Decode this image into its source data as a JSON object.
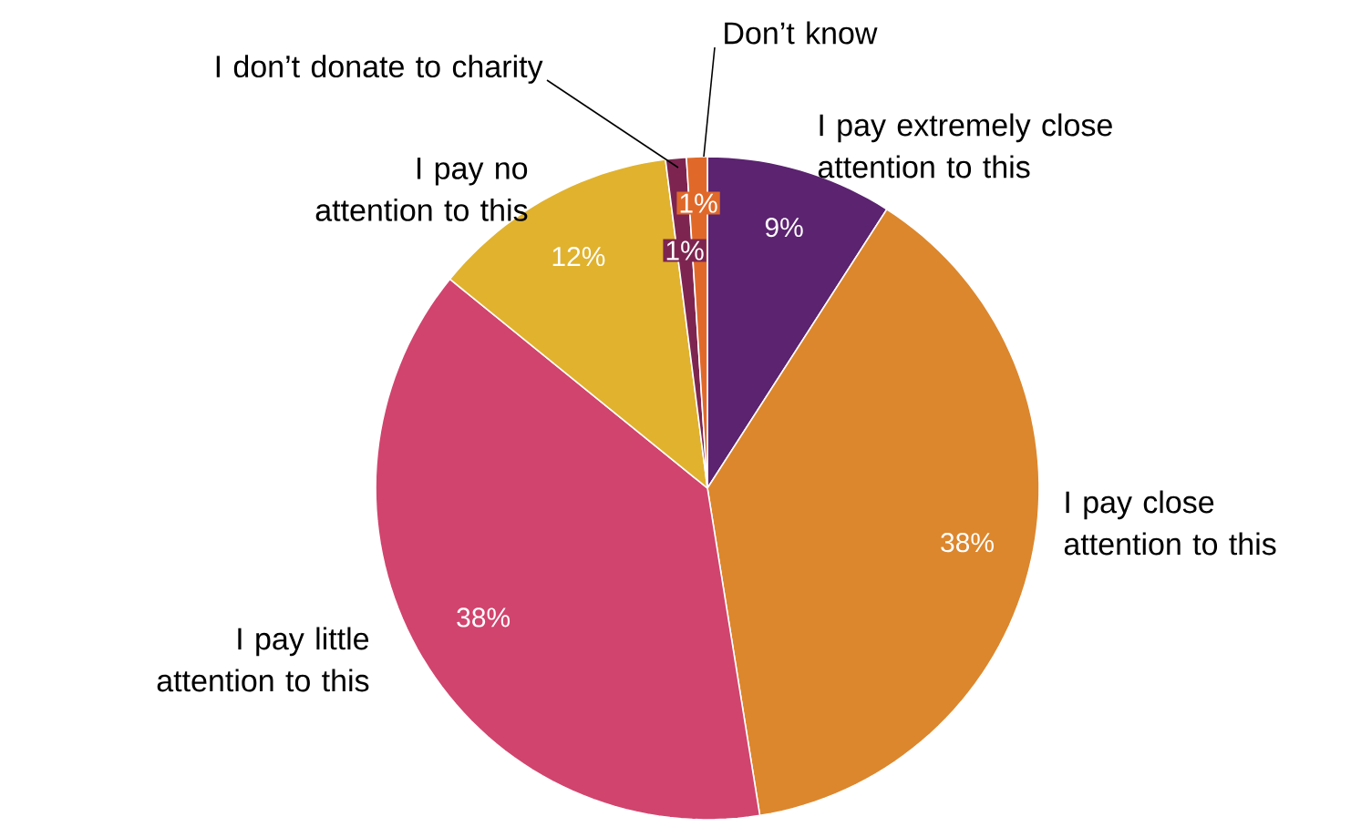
{
  "chart_data": {
    "type": "pie",
    "categories": [
      "I pay extremely close attention to this",
      "I pay close attention to this",
      "I pay little attention to this",
      "I pay no attention to this",
      "I don’t donate to charity",
      "Don’t know"
    ],
    "values": [
      9,
      38,
      38,
      12,
      1,
      1
    ],
    "value_labels": [
      "9%",
      "38%",
      "38%",
      "12%",
      "1%",
      "1%"
    ],
    "colors": [
      "#5b2370",
      "#dc872d",
      "#d1446e",
      "#e0b22e",
      "#7d2550",
      "#e0692a"
    ]
  }
}
